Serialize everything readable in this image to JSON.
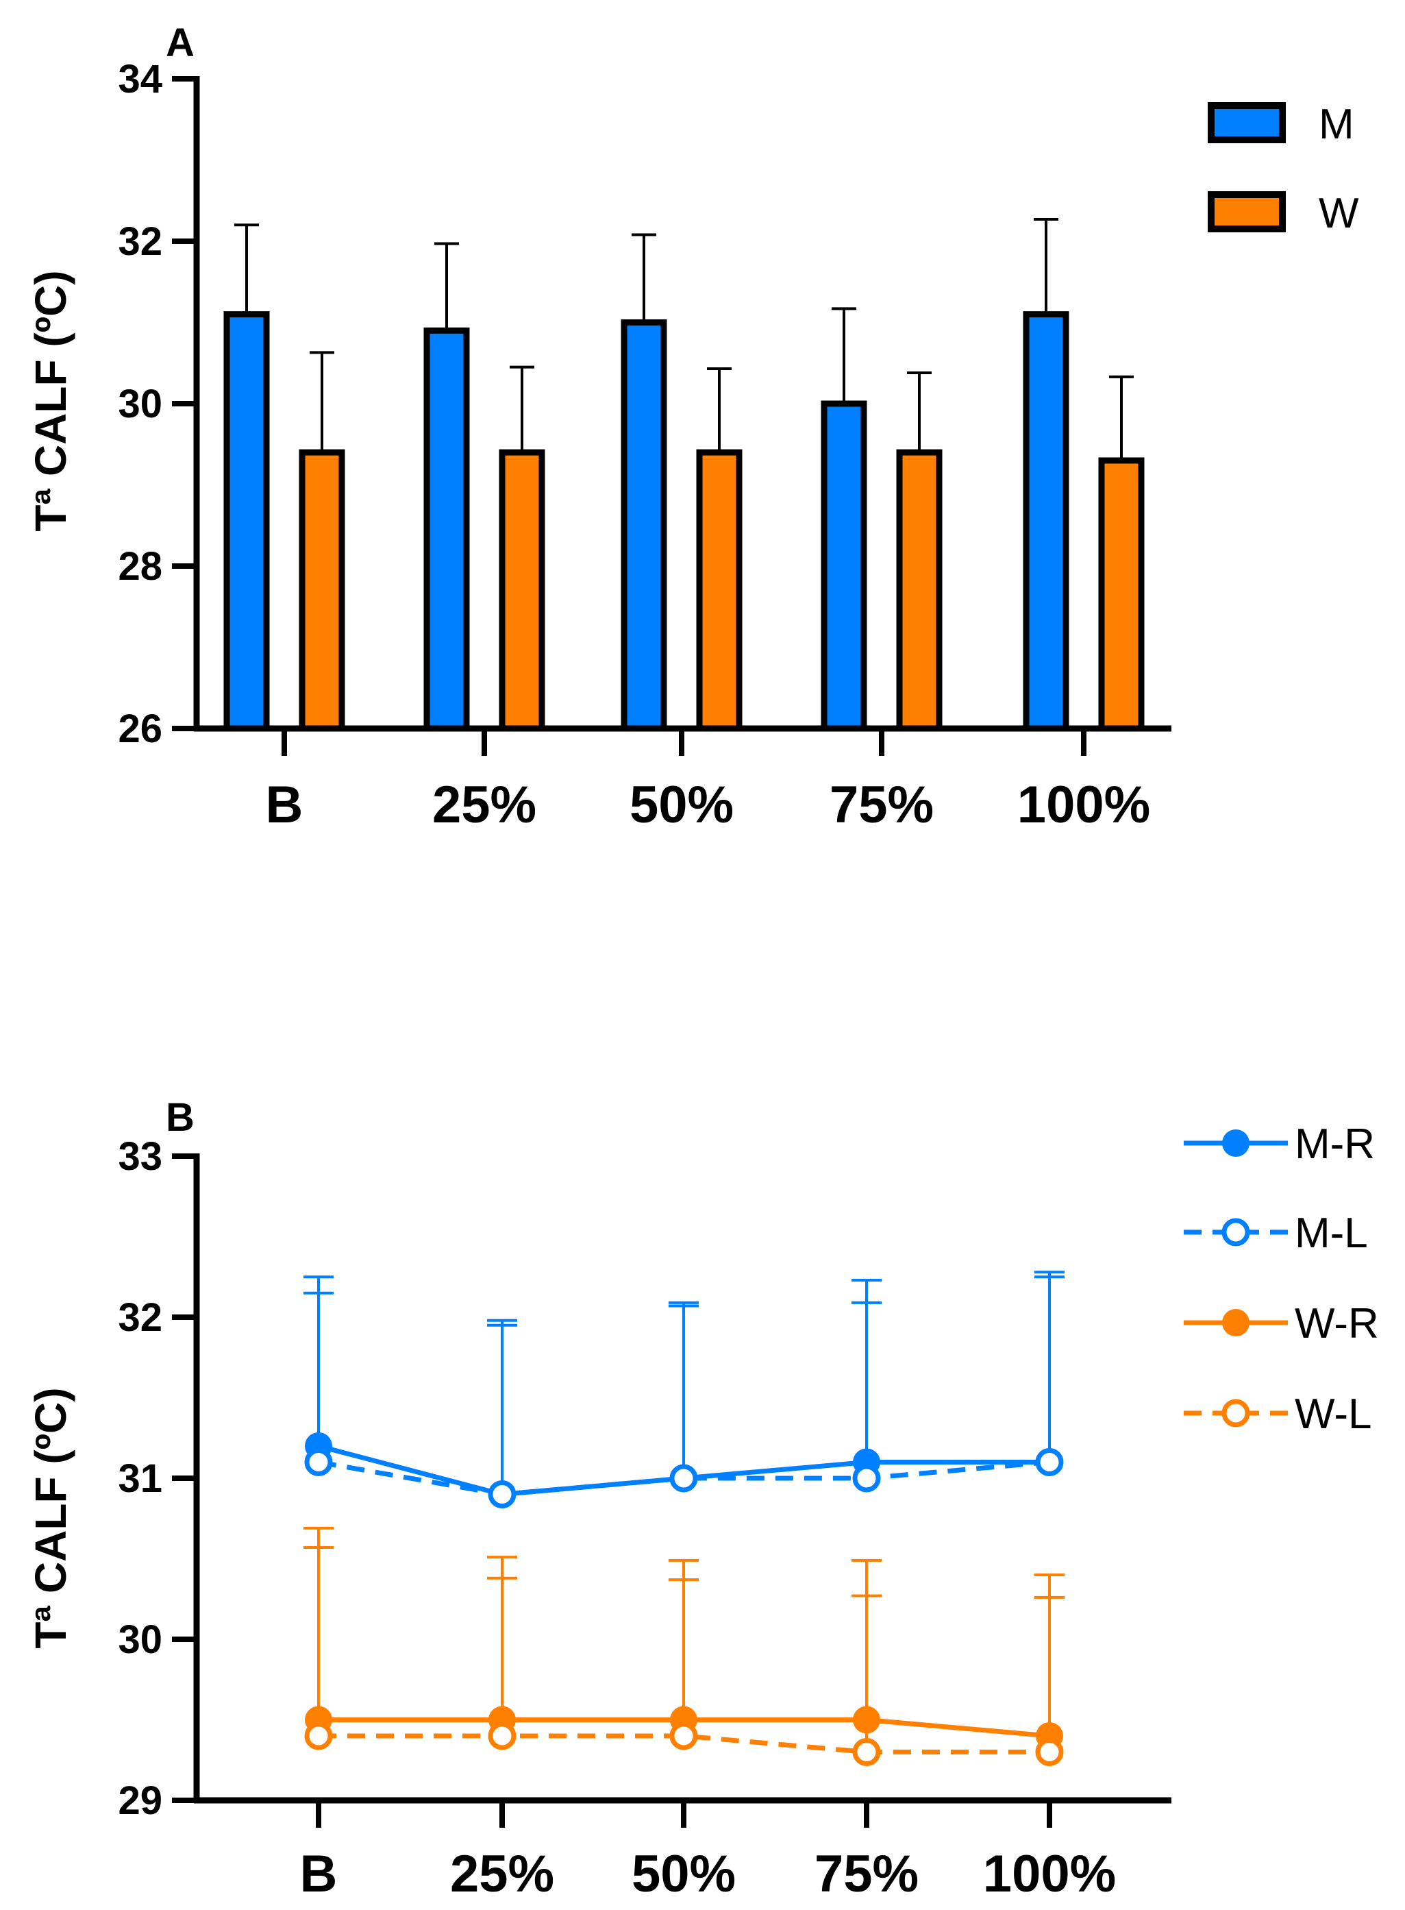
{
  "colors": {
    "men": "#0080FF",
    "women": "#FF8000",
    "axis": "#000000"
  },
  "chart_data": [
    {
      "type": "bar",
      "panel": "A",
      "ylabel": "Tª CALF (ºC)",
      "ylim": [
        26,
        34
      ],
      "yticks": [
        "26",
        "28",
        "30",
        "32",
        "34"
      ],
      "categories": [
        "B",
        "25%",
        "50%",
        "75%",
        "100%"
      ],
      "legend_position": "top-right",
      "series": [
        {
          "name": "M",
          "color": "#0080FF",
          "values": [
            31.1,
            30.9,
            31.0,
            30.0,
            31.1
          ],
          "error_upper": [
            32.2,
            31.97,
            32.08,
            31.17,
            32.27
          ]
        },
        {
          "name": "W",
          "color": "#FF8000",
          "values": [
            29.4,
            29.4,
            29.4,
            29.4,
            29.3
          ],
          "error_upper": [
            30.63,
            30.45,
            30.43,
            30.38,
            30.33
          ]
        }
      ]
    },
    {
      "type": "line",
      "panel": "B",
      "ylabel": "Tª CALF (ºC)",
      "ylim": [
        29,
        33
      ],
      "yticks": [
        "29",
        "30",
        "31",
        "32",
        "33"
      ],
      "categories": [
        "B",
        "25%",
        "50%",
        "75%",
        "100%"
      ],
      "legend_position": "top-right",
      "series": [
        {
          "name": "M-R",
          "color": "#0080FF",
          "style": "solid",
          "marker": "filled",
          "values": [
            31.2,
            30.9,
            31.0,
            31.1,
            31.1
          ],
          "error_upper": [
            32.25,
            31.98,
            32.09,
            32.23,
            32.28
          ]
        },
        {
          "name": "M-L",
          "color": "#0080FF",
          "style": "dashed",
          "marker": "open",
          "values": [
            31.1,
            30.9,
            31.0,
            31.0,
            31.1
          ],
          "error_upper": [
            32.15,
            31.95,
            32.07,
            32.09,
            32.25
          ]
        },
        {
          "name": "W-R",
          "color": "#FF8000",
          "style": "solid",
          "marker": "filled",
          "values": [
            29.5,
            29.5,
            29.5,
            29.5,
            29.4
          ],
          "error_upper": [
            30.69,
            30.51,
            30.49,
            30.49,
            30.4
          ]
        },
        {
          "name": "W-L",
          "color": "#FF8000",
          "style": "dashed",
          "marker": "open",
          "values": [
            29.4,
            29.4,
            29.4,
            29.3,
            29.3
          ],
          "error_upper": [
            30.57,
            30.38,
            30.37,
            30.27,
            30.26
          ]
        }
      ]
    }
  ]
}
